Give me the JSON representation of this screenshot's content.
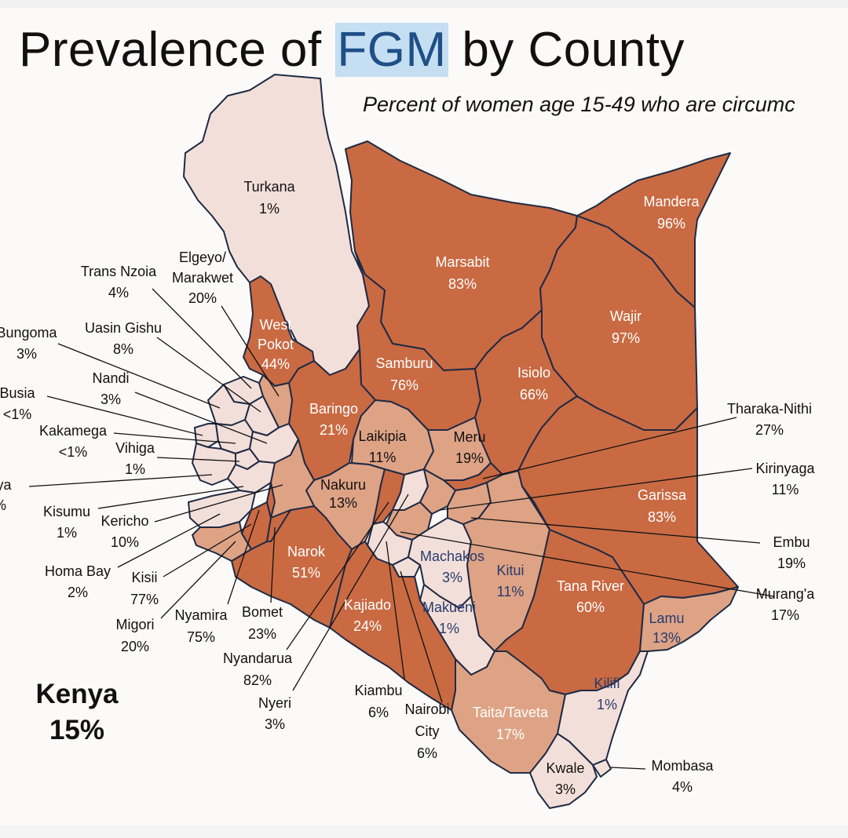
{
  "title": {
    "pre": "Prevalence of ",
    "highlight": "FGM",
    "post": " by County"
  },
  "subtitle": "Percent of women age 15-49 who are circumc",
  "national": {
    "name": "Kenya",
    "value": "15%"
  },
  "palette": {
    "low": "#f3dfd9",
    "mid": "#dea385",
    "high": "#c96a43",
    "border": "#1f2a44",
    "highlight_bg": "#c5def1"
  },
  "counties": [
    {
      "id": "turkana",
      "name": "Turkana",
      "value": "1%",
      "level": "low"
    },
    {
      "id": "marsabit",
      "name": "Marsabit",
      "value": "83%",
      "level": "high"
    },
    {
      "id": "mandera",
      "name": "Mandera",
      "value": "96%",
      "level": "high"
    },
    {
      "id": "wajir",
      "name": "Wajir",
      "value": "97%",
      "level": "high"
    },
    {
      "id": "west_pokot",
      "name": "West Pokot",
      "name_lines": [
        "West",
        "Pokot"
      ],
      "value": "44%",
      "level": "high"
    },
    {
      "id": "samburu",
      "name": "Samburu",
      "value": "76%",
      "level": "high"
    },
    {
      "id": "isiolo",
      "name": "Isiolo",
      "value": "66%",
      "level": "high"
    },
    {
      "id": "baringo",
      "name": "Baringo",
      "value": "21%",
      "level": "high"
    },
    {
      "id": "laikipia",
      "name": "Laikipia",
      "value": "11%",
      "level": "mid"
    },
    {
      "id": "meru",
      "name": "Meru",
      "value": "19%",
      "level": "mid"
    },
    {
      "id": "garissa",
      "name": "Garissa",
      "value": "83%",
      "level": "high"
    },
    {
      "id": "nakuru",
      "name": "Nakuru",
      "value": "13%",
      "level": "mid"
    },
    {
      "id": "narok",
      "name": "Narok",
      "value": "51%",
      "level": "high"
    },
    {
      "id": "kajiado",
      "name": "Kajiado",
      "value": "24%",
      "level": "high"
    },
    {
      "id": "machakos",
      "name": "Machakos",
      "value": "3%",
      "level": "low"
    },
    {
      "id": "kitui",
      "name": "Kitui",
      "value": "11%",
      "level": "mid"
    },
    {
      "id": "makueni",
      "name": "Makueni",
      "value": "1%",
      "level": "low"
    },
    {
      "id": "tana_river",
      "name": "Tana River",
      "value": "60%",
      "level": "high"
    },
    {
      "id": "lamu",
      "name": "Lamu",
      "value": "13%",
      "level": "mid"
    },
    {
      "id": "kilifi",
      "name": "Kilifi",
      "value": "1%",
      "level": "low"
    },
    {
      "id": "taita_taveta",
      "name": "Taita/Taveta",
      "value": "17%",
      "level": "mid"
    },
    {
      "id": "kwale",
      "name": "Kwale",
      "value": "3%",
      "level": "low"
    },
    {
      "id": "trans_nzoia",
      "name": "Trans Nzoia",
      "value": "4%",
      "level": "low"
    },
    {
      "id": "elgeyo_marakwet",
      "name": "Elgeyo/ Marakwet",
      "name_lines": [
        "Elgeyo/",
        "Marakwet"
      ],
      "value": "20%",
      "level": "mid"
    },
    {
      "id": "bungoma",
      "name": "Bungoma",
      "value": "3%",
      "level": "low"
    },
    {
      "id": "uasin_gishu",
      "name": "Uasin Gishu",
      "value": "8%",
      "level": "low"
    },
    {
      "id": "nandi",
      "name": "Nandi",
      "value": "3%",
      "level": "low"
    },
    {
      "id": "busia",
      "name": "Busia",
      "value": "<1%",
      "level": "low"
    },
    {
      "id": "kakamega",
      "name": "Kakamega",
      "value": "<1%",
      "level": "low"
    },
    {
      "id": "vihiga",
      "name": "Vihiga",
      "value": "1%",
      "level": "low"
    },
    {
      "id": "siaya",
      "name": "aya",
      "value": "%",
      "level": "low"
    },
    {
      "id": "kisumu",
      "name": "Kisumu",
      "value": "1%",
      "level": "low"
    },
    {
      "id": "kericho",
      "name": "Kericho",
      "value": "10%",
      "level": "mid"
    },
    {
      "id": "homa_bay",
      "name": "Homa Bay",
      "value": "2%",
      "level": "low"
    },
    {
      "id": "kisii",
      "name": "Kisii",
      "value": "77%",
      "level": "high"
    },
    {
      "id": "migori",
      "name": "Migori",
      "value": "20%",
      "level": "mid"
    },
    {
      "id": "nyamira",
      "name": "Nyamira",
      "value": "75%",
      "level": "high"
    },
    {
      "id": "bomet",
      "name": "Bomet",
      "value": "23%",
      "level": "high"
    },
    {
      "id": "nyandarua",
      "name": "Nyandarua",
      "value": "82%",
      "level": "high"
    },
    {
      "id": "nyeri",
      "name": "Nyeri",
      "value": "3%",
      "level": "low"
    },
    {
      "id": "kiambu",
      "name": "Kiambu",
      "value": "6%",
      "level": "low"
    },
    {
      "id": "nairobi",
      "name": "Nairobi City",
      "name_lines": [
        "Nairobi",
        "City"
      ],
      "value": "6%",
      "level": "low"
    },
    {
      "id": "tharaka_nithi",
      "name": "Tharaka-Nithi",
      "value": "27%",
      "level": "high"
    },
    {
      "id": "kirinyaga",
      "name": "Kirinyaga",
      "value": "11%",
      "level": "mid"
    },
    {
      "id": "embu",
      "name": "Embu",
      "value": "19%",
      "level": "mid"
    },
    {
      "id": "muranga",
      "name": "Murang'a",
      "value": "17%",
      "level": "mid"
    },
    {
      "id": "mombasa",
      "name": "Mombasa",
      "value": "4%",
      "level": "low"
    }
  ]
}
